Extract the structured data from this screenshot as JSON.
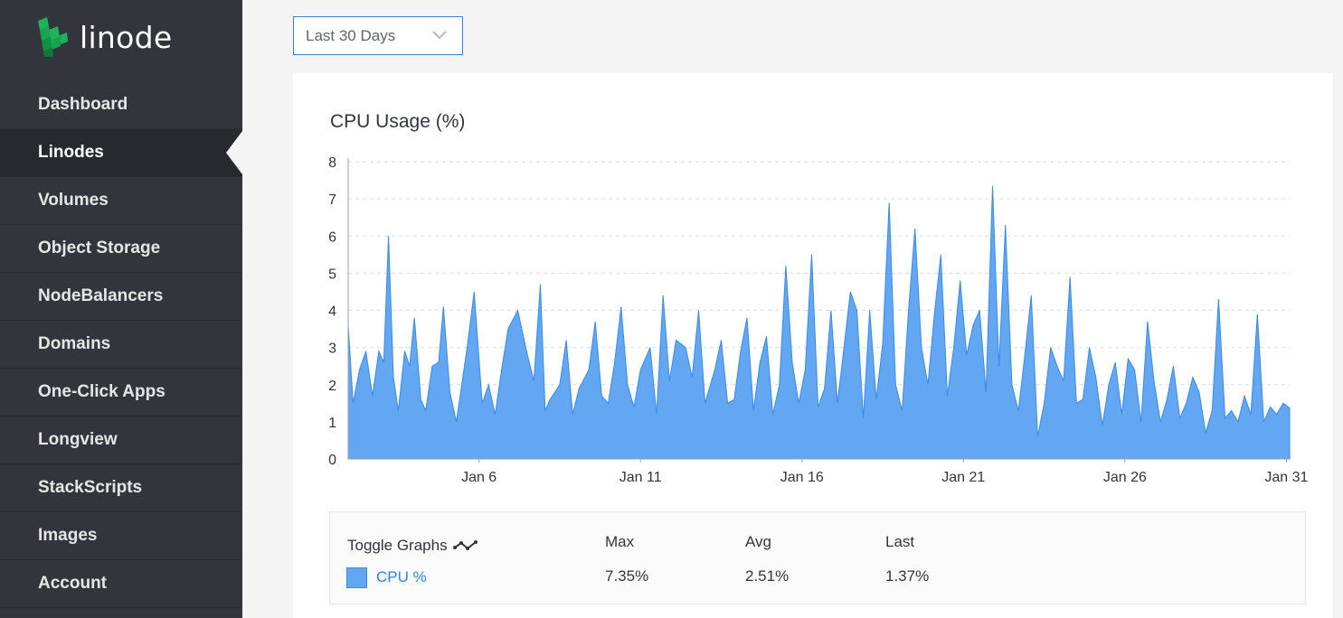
{
  "brand": {
    "name": "linode"
  },
  "sidebar": {
    "items": [
      {
        "label": "Dashboard"
      },
      {
        "label": "Linodes",
        "active": true
      },
      {
        "label": "Volumes"
      },
      {
        "label": "Object Storage"
      },
      {
        "label": "NodeBalancers"
      },
      {
        "label": "Domains"
      },
      {
        "label": "One-Click Apps"
      },
      {
        "label": "Longview"
      },
      {
        "label": "StackScripts"
      },
      {
        "label": "Images"
      },
      {
        "label": "Account"
      }
    ]
  },
  "range_select": {
    "value": "Last 30 Days"
  },
  "colors": {
    "sidebar_bg": "#32363c",
    "accent": "#3683dc",
    "series_fill": "#63a6f2",
    "logo_green": "#1cb35c"
  },
  "chart_data": {
    "type": "area",
    "title": "CPU Usage (%)",
    "ylim": [
      0,
      8
    ],
    "yticks": [
      "0",
      "1",
      "2",
      "3",
      "4",
      "5",
      "6",
      "7",
      "8"
    ],
    "xticks": [
      {
        "label": "Jan 6",
        "day": 6
      },
      {
        "label": "Jan 11",
        "day": 11
      },
      {
        "label": "Jan 16",
        "day": 16
      },
      {
        "label": "Jan 21",
        "day": 21
      },
      {
        "label": "Jan 26",
        "day": 26
      },
      {
        "label": "Jan 31",
        "day": 31
      }
    ],
    "xlim_days": [
      1.95,
      31.1
    ],
    "grid": true,
    "series": [
      {
        "name": "CPU %",
        "x_days": [
          1.95,
          2.1,
          2.3,
          2.5,
          2.7,
          2.9,
          3.05,
          3.2,
          3.35,
          3.5,
          3.7,
          3.85,
          4.0,
          4.2,
          4.35,
          4.55,
          4.75,
          4.9,
          5.1,
          5.3,
          5.5,
          5.65,
          5.85,
          6.1,
          6.3,
          6.5,
          6.7,
          6.9,
          7.2,
          7.5,
          7.7,
          7.9,
          8.05,
          8.2,
          8.5,
          8.7,
          8.9,
          9.1,
          9.4,
          9.6,
          9.8,
          10.0,
          10.2,
          10.4,
          10.6,
          10.8,
          11.0,
          11.3,
          11.5,
          11.7,
          11.9,
          12.1,
          12.4,
          12.6,
          12.8,
          13.0,
          13.3,
          13.5,
          13.7,
          13.9,
          14.1,
          14.3,
          14.5,
          14.7,
          14.9,
          15.1,
          15.3,
          15.5,
          15.7,
          15.9,
          16.1,
          16.3,
          16.5,
          16.7,
          16.9,
          17.1,
          17.3,
          17.5,
          17.7,
          17.9,
          18.1,
          18.3,
          18.5,
          18.7,
          18.9,
          19.1,
          19.3,
          19.5,
          19.7,
          19.9,
          20.1,
          20.3,
          20.5,
          20.7,
          20.9,
          21.1,
          21.3,
          21.5,
          21.7,
          21.9,
          22.1,
          22.3,
          22.5,
          22.7,
          22.9,
          23.1,
          23.3,
          23.5,
          23.7,
          23.9,
          24.1,
          24.3,
          24.5,
          24.7,
          24.9,
          25.1,
          25.3,
          25.5,
          25.7,
          25.9,
          26.1,
          26.3,
          26.5,
          26.7,
          26.9,
          27.1,
          27.3,
          27.5,
          27.7,
          27.9,
          28.1,
          28.3,
          28.5,
          28.7,
          28.9,
          29.1,
          29.3,
          29.5,
          29.7,
          29.9,
          30.1,
          30.3,
          30.5,
          30.7,
          30.9,
          31.1
        ],
        "y": [
          3.6,
          1.5,
          2.4,
          2.9,
          1.7,
          2.9,
          2.6,
          6.0,
          2.2,
          1.3,
          2.9,
          2.5,
          3.8,
          1.6,
          1.3,
          2.5,
          2.6,
          4.1,
          1.8,
          1.0,
          2.2,
          3.1,
          4.5,
          1.5,
          2.0,
          1.2,
          2.4,
          3.5,
          4.0,
          2.8,
          2.1,
          4.7,
          1.3,
          1.6,
          2.0,
          3.2,
          1.2,
          1.9,
          2.4,
          3.7,
          1.7,
          1.5,
          2.6,
          4.1,
          2.0,
          1.4,
          2.4,
          3.0,
          1.2,
          4.4,
          2.1,
          3.2,
          3.0,
          2.2,
          4.0,
          1.5,
          2.4,
          3.2,
          1.5,
          1.6,
          2.9,
          3.8,
          1.3,
          2.6,
          3.3,
          1.2,
          2.0,
          5.2,
          2.6,
          1.5,
          2.4,
          5.5,
          1.4,
          1.9,
          4.0,
          1.5,
          3.0,
          4.5,
          4.0,
          1.1,
          4.0,
          1.6,
          3.1,
          6.9,
          2.0,
          1.3,
          4.0,
          6.2,
          3.0,
          2.0,
          3.9,
          5.5,
          1.7,
          3.0,
          4.8,
          2.8,
          3.6,
          4.0,
          1.8,
          7.35,
          2.5,
          6.3,
          2.0,
          1.3,
          2.8,
          4.4,
          0.6,
          1.5,
          3.0,
          2.5,
          2.1,
          4.9,
          1.5,
          1.6,
          3.0,
          2.2,
          0.9,
          2.0,
          2.6,
          1.2,
          2.7,
          2.4,
          1.0,
          3.7,
          2.1,
          1.0,
          1.6,
          2.5,
          1.1,
          1.5,
          2.2,
          1.8,
          0.7,
          1.3,
          4.3,
          1.1,
          1.3,
          1.0,
          1.7,
          1.2,
          3.9,
          1.0,
          1.4,
          1.2,
          1.5,
          1.37
        ]
      }
    ]
  },
  "legend": {
    "toggle_label": "Toggle Graphs",
    "headers": {
      "max": "Max",
      "avg": "Avg",
      "last": "Last"
    },
    "series_name": "CPU %",
    "max": "7.35%",
    "avg": "2.51%",
    "last": "1.37%"
  }
}
